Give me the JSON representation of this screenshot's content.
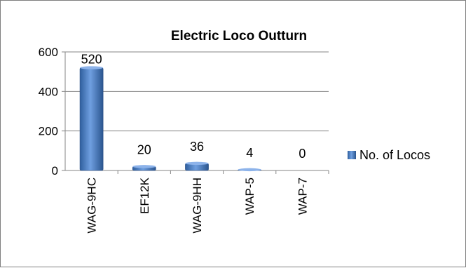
{
  "chart_data": {
    "type": "bar",
    "title": "Electric Loco Outturn",
    "categories": [
      "WAG-9HC",
      "EF12K",
      "WAG-9HH",
      "WAP-5",
      "WAP-7"
    ],
    "series": [
      {
        "name": "No. of Locos",
        "values": [
          520,
          20,
          36,
          4,
          0
        ],
        "color": "#4f81bd"
      }
    ],
    "ylim": [
      0,
      600
    ],
    "yticks": [
      0,
      200,
      400,
      600
    ],
    "grid": true,
    "legend_position": "right"
  }
}
